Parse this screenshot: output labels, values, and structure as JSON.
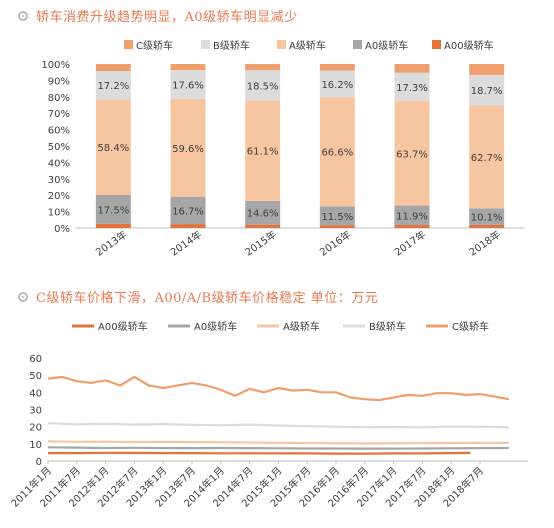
{
  "section1": {
    "title": "轿车消费升级趋势明显，A0级轿车明显减少"
  },
  "section2": {
    "title": "C级轿车价格下滑，A00/A/B级轿车价格稳定  单位：万元"
  },
  "chart_data": [
    {
      "type": "bar",
      "stacked": true,
      "categories": [
        "2013年",
        "2014年",
        "2015年",
        "2016年",
        "2017年",
        "2018年"
      ],
      "series": [
        {
          "name": "A00级轿车",
          "color": "#e0743a",
          "values": [
            2.6,
            2.4,
            2.0,
            1.7,
            1.8,
            1.9
          ]
        },
        {
          "name": "A0级轿车",
          "color": "#a6a6a6",
          "values": [
            17.5,
            16.7,
            14.6,
            11.5,
            11.9,
            10.1
          ]
        },
        {
          "name": "A级轿车",
          "color": "#f7c6a0",
          "values": [
            58.4,
            59.6,
            61.1,
            66.6,
            63.7,
            62.7
          ]
        },
        {
          "name": "B级轿车",
          "color": "#dcdcdc",
          "values": [
            17.2,
            17.6,
            18.5,
            16.2,
            17.3,
            18.7
          ]
        },
        {
          "name": "C级轿车",
          "color": "#ef9e6e",
          "values": [
            4.3,
            3.7,
            3.8,
            4.0,
            5.3,
            6.6
          ]
        }
      ],
      "legend_order": [
        "C级轿车",
        "B级轿车",
        "A级轿车",
        "A0级轿车",
        "A00级轿车"
      ],
      "data_labels": {
        "A0级轿车": [
          "17.5%",
          "16.7%",
          "14.6%",
          "11.5%",
          "11.9%",
          "10.1%"
        ],
        "A级轿车": [
          "58.4%",
          "59.6%",
          "61.1%",
          "66.6%",
          "63.7%",
          "62.7%"
        ],
        "B级轿车": [
          "17.2%",
          "17.6%",
          "18.5%",
          "16.2%",
          "17.3%",
          "18.7%"
        ]
      },
      "yticks": [
        "0%",
        "10%",
        "20%",
        "30%",
        "40%",
        "50%",
        "60%",
        "70%",
        "80%",
        "90%",
        "100%"
      ],
      "ylim": [
        0,
        100
      ],
      "legend": "top"
    },
    {
      "type": "line",
      "xticks": [
        "2011年1月",
        "2011年7月",
        "2012年1月",
        "2012年7月",
        "2013年1月",
        "2013年7月",
        "2014年1月",
        "2014年7月",
        "2015年1月",
        "2015年7月",
        "2016年1月",
        "2016年7月",
        "2017年1月",
        "2017年7月",
        "2018年1月",
        "2018年7月"
      ],
      "yticks": [
        "0",
        "10",
        "20",
        "30",
        "40",
        "50",
        "60"
      ],
      "ylim": [
        0,
        60
      ],
      "series": [
        {
          "name": "A00级轿车",
          "color": "#e0743a",
          "x": [
            0,
            6,
            12,
            18,
            24,
            30,
            36,
            42,
            48,
            54,
            60,
            66,
            72,
            78,
            84,
            88
          ],
          "values": [
            4.6,
            4.6,
            4.8,
            4.7,
            4.6,
            4.6,
            4.5,
            4.5,
            4.4,
            4.4,
            4.3,
            4.3,
            4.4,
            4.4,
            4.6,
            4.7
          ]
        },
        {
          "name": "A0级轿车",
          "color": "#a6a6a6",
          "x": [
            0,
            6,
            12,
            18,
            24,
            30,
            36,
            42,
            48,
            54,
            60,
            66,
            72,
            78,
            84,
            90,
            96
          ],
          "values": [
            8.0,
            7.8,
            7.6,
            7.7,
            7.6,
            7.5,
            7.6,
            7.5,
            7.4,
            7.3,
            7.3,
            7.2,
            7.2,
            7.3,
            7.4,
            7.5,
            7.6
          ]
        },
        {
          "name": "A级轿车",
          "color": "#f7c6a0",
          "x": [
            0,
            6,
            12,
            18,
            24,
            30,
            36,
            42,
            48,
            54,
            60,
            66,
            72,
            78,
            84,
            90,
            96
          ],
          "values": [
            11.5,
            11.2,
            11.3,
            11.0,
            11.1,
            11.0,
            10.9,
            10.8,
            10.6,
            10.5,
            10.3,
            10.2,
            10.3,
            10.4,
            10.5,
            10.6,
            10.6
          ]
        },
        {
          "name": "B级轿车",
          "color": "#dcdcdc",
          "x": [
            0,
            6,
            12,
            18,
            24,
            30,
            36,
            42,
            48,
            54,
            60,
            66,
            72,
            78,
            84,
            90,
            96
          ],
          "values": [
            22.0,
            21.3,
            21.6,
            21.2,
            21.5,
            21.0,
            20.8,
            21.2,
            20.7,
            20.3,
            20.0,
            19.7,
            19.8,
            19.6,
            20.1,
            19.9,
            19.7
          ]
        },
        {
          "name": "C级轿车",
          "color": "#ef9e6e",
          "x": [
            0,
            3,
            6,
            9,
            12,
            15,
            18,
            21,
            24,
            27,
            30,
            33,
            36,
            39,
            42,
            45,
            48,
            51,
            54,
            57,
            60,
            63,
            66,
            69,
            72,
            75,
            78,
            81,
            84,
            87,
            90,
            93,
            96
          ],
          "values": [
            48,
            49,
            46.5,
            45.5,
            47,
            44,
            49,
            44,
            42.5,
            44,
            45.5,
            44,
            41.5,
            38,
            42,
            40,
            42.5,
            41,
            41.5,
            40,
            40,
            37,
            36,
            35.5,
            37,
            38.5,
            38,
            39.5,
            39.5,
            38.5,
            39,
            37.5,
            36
          ]
        }
      ],
      "legend": "top"
    }
  ]
}
